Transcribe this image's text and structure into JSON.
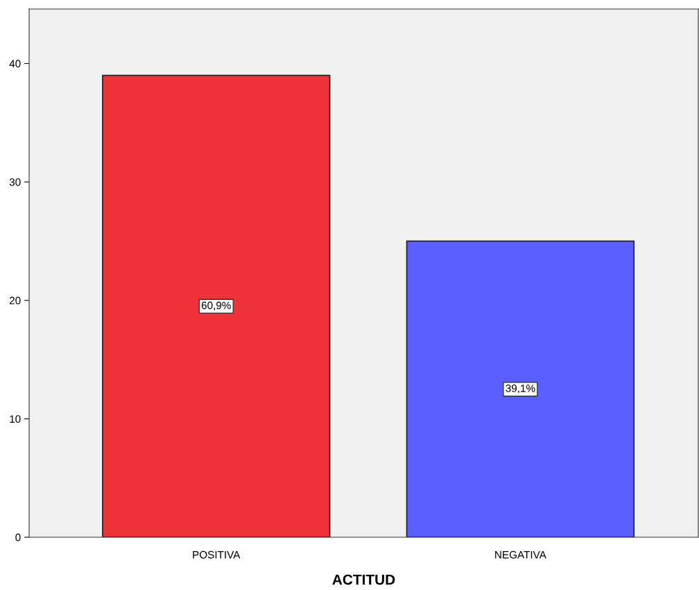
{
  "chart_data": {
    "type": "bar",
    "xlabel": "ACTITUD",
    "categories": [
      "POSITIVA",
      "NEGATIVA"
    ],
    "values": [
      39,
      25
    ],
    "colors": [
      "#ef313a",
      "#5a5eff"
    ],
    "annotations": [
      "60,9%",
      "39,1%"
    ],
    "ylim": [
      0,
      44.6
    ],
    "yticks": [
      0,
      10,
      20,
      30,
      40
    ],
    "grid": false
  }
}
